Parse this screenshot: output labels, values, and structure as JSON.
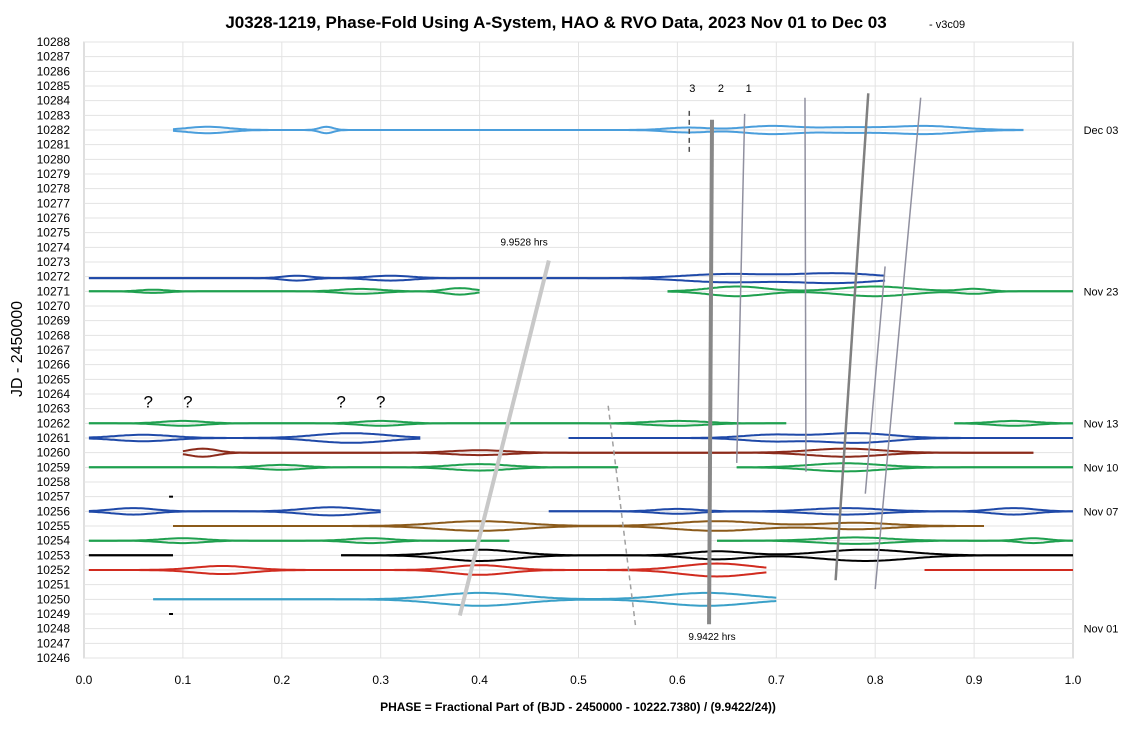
{
  "chart_data": {
    "type": "line",
    "title": "J0328-1219, Phase-Fold Using A-System, HAO & RVO Data, 2023 Nov 01 to Dec 03",
    "version_tag": "- v3c09",
    "xlabel": "PHASE = Fractional Part of (BJD - 2450000 - 10222.7380) / (9.9422/24))",
    "ylabel": "JD - 2450000",
    "xlim": [
      0,
      1
    ],
    "ylim": [
      10246,
      10288
    ],
    "x_ticks": [
      "0.0",
      "0.1",
      "0.2",
      "0.3",
      "0.4",
      "0.5",
      "0.6",
      "0.7",
      "0.8",
      "0.9",
      "1.0"
    ],
    "y_ticks": [
      "10288",
      "10287",
      "10286",
      "10285",
      "10284",
      "10283",
      "10282",
      "10281",
      "10280",
      "10279",
      "10278",
      "10277",
      "10276",
      "10275",
      "10274",
      "10273",
      "10272",
      "10271",
      "10270",
      "10269",
      "10268",
      "10267",
      "10266",
      "10265",
      "10264",
      "10263",
      "10262",
      "10261",
      "10260",
      "10259",
      "10258",
      "10257",
      "10256",
      "10255",
      "10254",
      "10253",
      "10252",
      "10251",
      "10250",
      "10249",
      "10248",
      "10247",
      "10246"
    ],
    "grid": true,
    "date_labels": [
      {
        "text": "Dec 03",
        "jd": 10282
      },
      {
        "text": "Nov 23",
        "jd": 10271
      },
      {
        "text": "Nov 13",
        "jd": 10262
      },
      {
        "text": "Nov 10",
        "jd": 10259
      },
      {
        "text": "Nov 07",
        "jd": 10256
      },
      {
        "text": "Nov 01",
        "jd": 10248
      }
    ],
    "series": [
      {
        "jd": 10282,
        "color": "#4a9edc",
        "segments": [
          [
            0.09,
            0.95
          ]
        ],
        "dips": [
          [
            0.125,
            0.03,
            0.4
          ],
          [
            0.245,
            0.01,
            0.4
          ],
          [
            0.61,
            0.03,
            0.3
          ],
          [
            0.695,
            0.04,
            0.5
          ],
          [
            0.77,
            0.04,
            0.3
          ],
          [
            0.85,
            0.05,
            0.5
          ]
        ]
      },
      {
        "jd": 10271.9,
        "color": "#1f49a8",
        "segments": [
          [
            0.005,
            0.81
          ]
        ],
        "dips": [
          [
            0.215,
            0.02,
            0.3
          ],
          [
            0.31,
            0.03,
            0.3
          ],
          [
            0.65,
            0.06,
            0.5
          ],
          [
            0.76,
            0.06,
            0.6
          ]
        ]
      },
      {
        "jd": 10271,
        "color": "#1fa04f",
        "segments": [
          [
            0.005,
            0.4
          ],
          [
            0.59,
            1.0
          ]
        ],
        "dips": [
          [
            0.07,
            0.02,
            0.2
          ],
          [
            0.28,
            0.03,
            0.3
          ],
          [
            0.38,
            0.02,
            0.4
          ],
          [
            0.66,
            0.04,
            0.6
          ],
          [
            0.8,
            0.05,
            0.6
          ],
          [
            0.9,
            0.02,
            0.3
          ]
        ]
      },
      {
        "jd": 10262,
        "color": "#1fa04f",
        "segments": [
          [
            0.005,
            0.71
          ],
          [
            0.88,
            1.0
          ]
        ],
        "dips": [
          [
            0.1,
            0.03,
            0.3
          ],
          [
            0.3,
            0.03,
            0.3
          ],
          [
            0.6,
            0.04,
            0.3
          ],
          [
            0.94,
            0.03,
            0.3
          ]
        ]
      },
      {
        "jd": 10261,
        "color": "#1f49a8",
        "segments": [
          [
            0.005,
            0.34
          ],
          [
            0.49,
            1.0
          ]
        ],
        "dips": [
          [
            0.06,
            0.04,
            0.4
          ],
          [
            0.27,
            0.05,
            0.6
          ],
          [
            0.695,
            0.04,
            0.4
          ],
          [
            0.78,
            0.05,
            0.6
          ]
        ]
      },
      {
        "jd": 10260,
        "color": "#8b2a1a",
        "segments": [
          [
            0.1,
            0.96
          ]
        ],
        "dips": [
          [
            0.12,
            0.02,
            0.5
          ],
          [
            0.4,
            0.04,
            0.3
          ],
          [
            0.77,
            0.05,
            0.5
          ]
        ]
      },
      {
        "jd": 10259,
        "color": "#1fa04f",
        "segments": [
          [
            0.005,
            0.54
          ],
          [
            0.66,
            1.0
          ]
        ],
        "dips": [
          [
            0.2,
            0.03,
            0.3
          ],
          [
            0.4,
            0.04,
            0.4
          ],
          [
            0.77,
            0.05,
            0.5
          ]
        ]
      },
      {
        "jd": 10256,
        "color": "#1f49a8",
        "segments": [
          [
            0.005,
            0.3
          ],
          [
            0.47,
            1.0
          ]
        ],
        "dips": [
          [
            0.05,
            0.03,
            0.4
          ],
          [
            0.25,
            0.04,
            0.5
          ],
          [
            0.6,
            0.03,
            0.3
          ],
          [
            0.77,
            0.05,
            0.4
          ],
          [
            0.94,
            0.03,
            0.4
          ]
        ]
      },
      {
        "jd": 10255,
        "color": "#8b5a1a",
        "segments": [
          [
            0.09,
            0.91
          ]
        ],
        "dips": [
          [
            0.4,
            0.06,
            0.6
          ],
          [
            0.64,
            0.06,
            0.6
          ],
          [
            0.78,
            0.05,
            0.4
          ]
        ]
      },
      {
        "jd": 10254,
        "color": "#1fa04f",
        "segments": [
          [
            0.005,
            0.43
          ],
          [
            0.64,
            1.0
          ]
        ],
        "dips": [
          [
            0.1,
            0.03,
            0.3
          ],
          [
            0.29,
            0.03,
            0.3
          ],
          [
            0.78,
            0.05,
            0.4
          ],
          [
            0.96,
            0.02,
            0.3
          ]
        ]
      },
      {
        "jd": 10253,
        "color": "#000000",
        "segments": [
          [
            0.005,
            0.09
          ],
          [
            0.26,
            1.0
          ]
        ],
        "dips": [
          [
            0.4,
            0.05,
            0.7
          ],
          [
            0.64,
            0.04,
            0.5
          ],
          [
            0.79,
            0.06,
            0.7
          ]
        ]
      },
      {
        "jd": 10252,
        "color": "#d12b1f",
        "segments": [
          [
            0.005,
            0.69
          ],
          [
            0.85,
            1.0
          ]
        ],
        "dips": [
          [
            0.14,
            0.04,
            0.5
          ],
          [
            0.4,
            0.04,
            0.6
          ],
          [
            0.64,
            0.05,
            0.8
          ]
        ]
      },
      {
        "jd": 10250,
        "color": "#3aa0c8",
        "segments": [
          [
            0.07,
            0.7
          ]
        ],
        "dips": [
          [
            0.4,
            0.06,
            0.8
          ],
          [
            0.63,
            0.06,
            0.8
          ]
        ]
      }
    ],
    "markers": [
      {
        "label": "3",
        "phase": 0.612
      },
      {
        "label": "2",
        "phase": 0.641
      },
      {
        "label": "1",
        "phase": 0.669
      }
    ],
    "question_marks": [
      {
        "text": "?",
        "phase": 0.065,
        "jd": 10263.5
      },
      {
        "text": "?",
        "phase": 0.105,
        "jd": 10263.5
      },
      {
        "text": "?",
        "phase": 0.26,
        "jd": 10263.5
      },
      {
        "text": "?",
        "phase": 0.3,
        "jd": 10263.5
      }
    ],
    "annotations": [
      {
        "text": "9.9528 hrs",
        "phase": 0.445,
        "jd": 10274.4
      },
      {
        "text": "9.9422 hrs",
        "phase": 0.635,
        "jd": 10247.5
      }
    ],
    "trend_lines": [
      {
        "name": "9.9528 hrs",
        "x0": 0.38,
        "y0": 10248.9,
        "x1": 0.47,
        "y1": 10273.1,
        "color": "#c8c8c8",
        "style": "thick"
      },
      {
        "name": "9.9422 hrs",
        "x0": 0.632,
        "y0": 10248.3,
        "x1": 0.635,
        "y1": 10282.7,
        "color": "#888888",
        "style": "thick"
      },
      {
        "name": "line-1",
        "x0": 0.66,
        "y0": 10259.3,
        "x1": 0.668,
        "y1": 10283.1,
        "color": "#9090a0",
        "style": "thin"
      },
      {
        "name": "line-a",
        "x0": 0.73,
        "y0": 10258.7,
        "x1": 0.729,
        "y1": 10284.2,
        "color": "#9090a0",
        "style": "thin"
      },
      {
        "name": "line-b",
        "x0": 0.76,
        "y0": 10251.3,
        "x1": 0.793,
        "y1": 10284.5,
        "color": "#808080",
        "style": "medium"
      },
      {
        "name": "line-c",
        "x0": 0.8,
        "y0": 10250.7,
        "x1": 0.846,
        "y1": 10284.2,
        "color": "#9090a0",
        "style": "thin"
      },
      {
        "name": "line-d",
        "x0": 0.79,
        "y0": 10257.2,
        "x1": 0.81,
        "y1": 10272.7,
        "color": "#9090a0",
        "style": "thin"
      },
      {
        "name": "dashed-1",
        "x0": 0.53,
        "y0": 10263.2,
        "x1": 0.558,
        "y1": 10248,
        "color": "#a0a0a0",
        "style": "dashed"
      },
      {
        "name": "dashed-3",
        "x0": 0.612,
        "y0": 10283.3,
        "x1": 0.612,
        "y1": 10280.4,
        "color": "#505050",
        "style": "dashed"
      }
    ]
  }
}
